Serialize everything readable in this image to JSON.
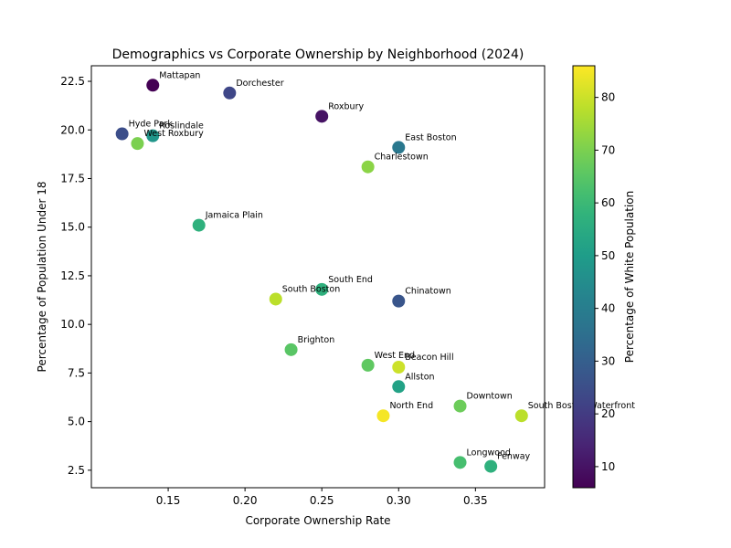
{
  "chart_data": {
    "type": "scatter",
    "title": "Demographics vs Corporate Ownership by Neighborhood (2024)",
    "xlabel": "Corporate Ownership Rate",
    "ylabel": "Percentage of Population Under 18",
    "xlim": [
      0.1,
      0.395
    ],
    "ylim": [
      1.6,
      23.3
    ],
    "xticks": [
      0.15,
      0.2,
      0.25,
      0.3,
      0.35
    ],
    "xtick_labels": [
      "0.15",
      "0.20",
      "0.25",
      "0.30",
      "0.35"
    ],
    "yticks": [
      2.5,
      5.0,
      7.5,
      10.0,
      12.5,
      15.0,
      17.5,
      20.0,
      22.5
    ],
    "ytick_labels": [
      "2.5",
      "5.0",
      "7.5",
      "10.0",
      "12.5",
      "15.0",
      "17.5",
      "20.0",
      "22.5"
    ],
    "grid": false,
    "colormap": "viridis",
    "colorbar": {
      "label": "Percentage of White Population",
      "range": [
        6,
        86
      ],
      "ticks": [
        10,
        20,
        30,
        40,
        50,
        60,
        70,
        80
      ],
      "tick_labels": [
        "10",
        "20",
        "30",
        "40",
        "50",
        "60",
        "70",
        "80"
      ]
    },
    "points": [
      {
        "label": "Mattapan",
        "x": 0.14,
        "y": 22.3,
        "white_pct": 6
      },
      {
        "label": "Dorchester",
        "x": 0.19,
        "y": 21.9,
        "white_pct": 23
      },
      {
        "label": "Roxbury",
        "x": 0.25,
        "y": 20.7,
        "white_pct": 10
      },
      {
        "label": "Hyde Park",
        "x": 0.12,
        "y": 19.8,
        "white_pct": 25
      },
      {
        "label": "Roslindale",
        "x": 0.14,
        "y": 19.7,
        "white_pct": 48
      },
      {
        "label": "West Roxbury",
        "x": 0.13,
        "y": 19.3,
        "white_pct": 70
      },
      {
        "label": "East Boston",
        "x": 0.3,
        "y": 19.1,
        "white_pct": 38
      },
      {
        "label": "Charlestown",
        "x": 0.28,
        "y": 18.1,
        "white_pct": 72
      },
      {
        "label": "Jamaica Plain",
        "x": 0.17,
        "y": 15.1,
        "white_pct": 57
      },
      {
        "label": "South End",
        "x": 0.25,
        "y": 11.8,
        "white_pct": 57
      },
      {
        "label": "South Boston",
        "x": 0.22,
        "y": 11.3,
        "white_pct": 78
      },
      {
        "label": "Chinatown",
        "x": 0.3,
        "y": 11.2,
        "white_pct": 27
      },
      {
        "label": "Brighton",
        "x": 0.23,
        "y": 8.7,
        "white_pct": 65
      },
      {
        "label": "West End",
        "x": 0.28,
        "y": 7.9,
        "white_pct": 66
      },
      {
        "label": "Beacon Hill",
        "x": 0.3,
        "y": 7.8,
        "white_pct": 80
      },
      {
        "label": "Allston",
        "x": 0.3,
        "y": 6.8,
        "white_pct": 52
      },
      {
        "label": "Downtown",
        "x": 0.34,
        "y": 5.8,
        "white_pct": 68
      },
      {
        "label": "North End",
        "x": 0.29,
        "y": 5.3,
        "white_pct": 85
      },
      {
        "label": "South Boston Waterfront",
        "x": 0.38,
        "y": 5.3,
        "white_pct": 78
      },
      {
        "label": "Longwood",
        "x": 0.34,
        "y": 2.9,
        "white_pct": 62
      },
      {
        "label": "Fenway",
        "x": 0.36,
        "y": 2.7,
        "white_pct": 57
      }
    ]
  }
}
